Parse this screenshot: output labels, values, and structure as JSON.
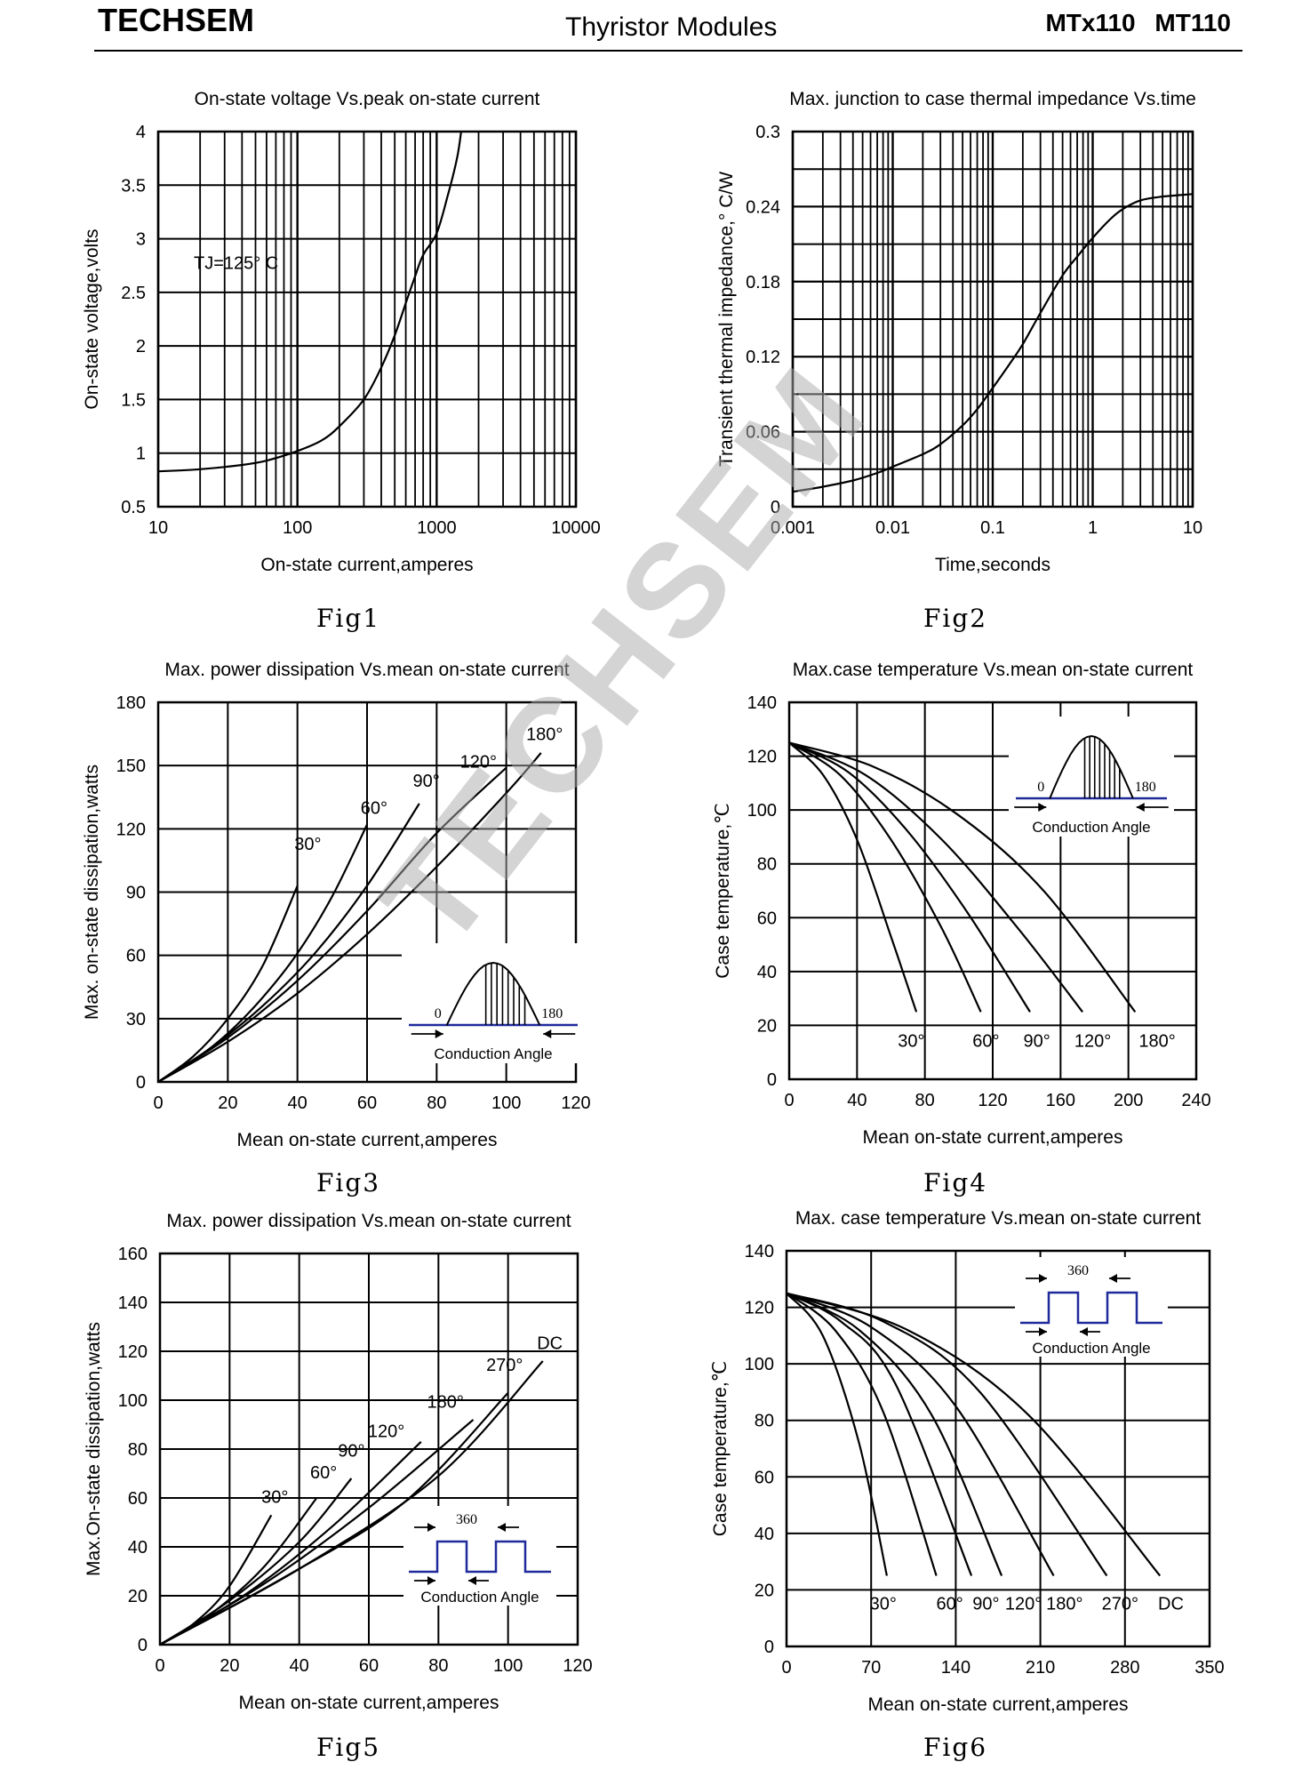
{
  "header": {
    "brand": "TECHSEM",
    "title": "Thyristor Modules",
    "part_numbers": "MTx110 MT110"
  },
  "watermark": "TECHSEM",
  "colors": {
    "ink": "#000000",
    "waveform": "#1f2a9b",
    "watermark": "#aaaaaa"
  },
  "chart_data": [
    {
      "id": "fig1",
      "caption": "Fig1",
      "type": "line",
      "title": "On-state voltage Vs.peak on-state current",
      "xlabel": "On-state current,amperes",
      "ylabel": "On-state voltage,volts",
      "xscale": "log",
      "xlim": [
        10,
        10000
      ],
      "ylim": [
        0.5,
        4
      ],
      "grid": true,
      "xticks": [
        10,
        100,
        1000,
        10000
      ],
      "xtick_labels": [
        "10",
        "100",
        "1000",
        "10000"
      ],
      "yticks": [
        0.5,
        1,
        1.5,
        2,
        2.5,
        3,
        3.5,
        4
      ],
      "ytick_labels": [
        "0.5",
        "1",
        "1.5",
        "2",
        "2.5",
        "3",
        "3.5",
        "4"
      ],
      "annotations": [
        {
          "text": "TJ=125° C",
          "x": 18,
          "y": 2.72
        }
      ],
      "series": [
        {
          "name": "TJ=125° C",
          "x": [
            10,
            20,
            40,
            60,
            100,
            150,
            200,
            300,
            400,
            500,
            600,
            700,
            800,
            1000,
            1200,
            1400,
            1500
          ],
          "y": [
            0.83,
            0.85,
            0.89,
            0.93,
            1.02,
            1.12,
            1.25,
            1.5,
            1.8,
            2.1,
            2.4,
            2.65,
            2.85,
            3.05,
            3.4,
            3.75,
            4.0
          ]
        }
      ]
    },
    {
      "id": "fig2",
      "caption": "Fig2",
      "type": "line",
      "title": "Max. junction to case thermal impedance Vs.time",
      "xlabel": "Time,seconds",
      "ylabel": "Transient thermal impedance,° C/W",
      "xscale": "log",
      "xlim": [
        0.001,
        10
      ],
      "ylim": [
        0,
        0.3
      ],
      "grid": true,
      "xticks": [
        0.001,
        0.01,
        0.1,
        1,
        10
      ],
      "xtick_labels": [
        "0.001",
        "0.01",
        "0.1",
        "1",
        "10"
      ],
      "yticks": [
        0,
        0.06,
        0.12,
        0.18,
        0.24,
        0.3
      ],
      "ytick_labels": [
        "0",
        "0.06",
        "0.12",
        "0.18",
        "0.24",
        "0.3"
      ],
      "series": [
        {
          "name": "Zth",
          "x": [
            0.001,
            0.002,
            0.004,
            0.007,
            0.01,
            0.02,
            0.03,
            0.05,
            0.07,
            0.1,
            0.15,
            0.2,
            0.3,
            0.5,
            0.7,
            1,
            1.5,
            2,
            3,
            5,
            10
          ],
          "y": [
            0.012,
            0.016,
            0.021,
            0.027,
            0.032,
            0.042,
            0.05,
            0.065,
            0.078,
            0.095,
            0.115,
            0.13,
            0.155,
            0.185,
            0.2,
            0.215,
            0.23,
            0.238,
            0.245,
            0.248,
            0.25
          ]
        }
      ]
    },
    {
      "id": "fig3",
      "caption": "Fig3",
      "type": "line",
      "title": "Max. power dissipation Vs.mean on-state current",
      "xlabel": "Mean on-state current,amperes",
      "ylabel": "Max. on-state dissipation,watts",
      "xlim": [
        0,
        120
      ],
      "ylim": [
        0,
        180
      ],
      "grid": true,
      "xticks": [
        0,
        20,
        40,
        60,
        80,
        100,
        120
      ],
      "xtick_labels": [
        "0",
        "20",
        "40",
        "60",
        "80",
        "100",
        "120"
      ],
      "yticks": [
        0,
        30,
        60,
        90,
        120,
        150,
        180
      ],
      "ytick_labels": [
        "0",
        "30",
        "60",
        "90",
        "120",
        "150",
        "180"
      ],
      "inset": {
        "kind": "sine",
        "label_start": "0",
        "label_end": "180",
        "caption": "Conduction Angle"
      },
      "series": [
        {
          "name": "30°",
          "label_pos": [
            43,
            110
          ],
          "x": [
            0,
            10,
            20,
            30,
            40
          ],
          "y": [
            0,
            12,
            30,
            55,
            93
          ]
        },
        {
          "name": "60°",
          "label_pos": [
            62,
            127
          ],
          "x": [
            0,
            10,
            20,
            30,
            40,
            50,
            60
          ],
          "y": [
            0,
            10,
            23,
            40,
            61,
            88,
            122
          ]
        },
        {
          "name": "90°",
          "label_pos": [
            77,
            140
          ],
          "x": [
            0,
            15,
            30,
            45,
            60,
            75
          ],
          "y": [
            0,
            16,
            36,
            61,
            93,
            132
          ]
        },
        {
          "name": "120°",
          "label_pos": [
            92,
            149
          ],
          "x": [
            0,
            20,
            40,
            60,
            80,
            100
          ],
          "y": [
            0,
            21,
            48,
            81,
            118,
            149
          ]
        },
        {
          "name": "180°",
          "label_pos": [
            111,
            162
          ],
          "x": [
            0,
            20,
            40,
            60,
            80,
            100,
            110
          ],
          "y": [
            0,
            19,
            42,
            70,
            102,
            137,
            156
          ]
        }
      ]
    },
    {
      "id": "fig4",
      "caption": "Fig4",
      "type": "line",
      "title": "Max.case temperature Vs.mean on-state current",
      "xlabel": "Mean on-state current,amperes",
      "ylabel": "Case temperature,℃",
      "xlim": [
        0,
        240
      ],
      "ylim": [
        0,
        140
      ],
      "grid": true,
      "xticks": [
        0,
        40,
        80,
        120,
        160,
        200,
        240
      ],
      "xtick_labels": [
        "0",
        "40",
        "80",
        "120",
        "160",
        "200",
        "240"
      ],
      "yticks": [
        0,
        20,
        40,
        60,
        80,
        100,
        120,
        140
      ],
      "ytick_labels": [
        "0",
        "20",
        "40",
        "60",
        "80",
        "100",
        "120",
        "140"
      ],
      "inset": {
        "kind": "sine",
        "label_start": "0",
        "label_end": "180",
        "caption": "Conduction Angle"
      },
      "series": [
        {
          "name": "30°",
          "label_pos": [
            72,
            12
          ],
          "x": [
            0,
            20,
            40,
            60,
            75
          ],
          "y": [
            125,
            113,
            89,
            53,
            25
          ]
        },
        {
          "name": "60°",
          "label_pos": [
            116,
            12
          ],
          "x": [
            0,
            30,
            60,
            90,
            113
          ],
          "y": [
            125,
            113,
            89,
            56,
            25
          ]
        },
        {
          "name": "90°",
          "label_pos": [
            146,
            12
          ],
          "x": [
            0,
            35,
            70,
            105,
            142
          ],
          "y": [
            125,
            114,
            92,
            62,
            25
          ]
        },
        {
          "name": "120°",
          "label_pos": [
            179,
            12
          ],
          "x": [
            0,
            45,
            90,
            135,
            173
          ],
          "y": [
            125,
            113,
            89,
            56,
            25
          ]
        },
        {
          "name": "180°",
          "label_pos": [
            217,
            12
          ],
          "x": [
            0,
            50,
            100,
            150,
            204
          ],
          "y": [
            125,
            116,
            98,
            70,
            25
          ]
        }
      ]
    },
    {
      "id": "fig5",
      "caption": "Fig5",
      "type": "line",
      "title": "Max. power dissipation Vs.mean on-state current",
      "xlabel": "Mean on-state current,amperes",
      "ylabel": "Max.On-state dissipation,watts",
      "xlim": [
        0,
        120
      ],
      "ylim": [
        0,
        160
      ],
      "grid": true,
      "xticks": [
        0,
        20,
        40,
        60,
        80,
        100,
        120
      ],
      "xtick_labels": [
        "0",
        "20",
        "40",
        "60",
        "80",
        "100",
        "120"
      ],
      "yticks": [
        0,
        20,
        40,
        60,
        80,
        100,
        120,
        140,
        160
      ],
      "ytick_labels": [
        "0",
        "20",
        "40",
        "60",
        "80",
        "100",
        "120",
        "140",
        "160"
      ],
      "inset": {
        "kind": "square",
        "label_period": "360",
        "caption": "Conduction Angle"
      },
      "series": [
        {
          "name": "30°",
          "label_pos": [
            33,
            58
          ],
          "x": [
            0,
            10,
            20,
            32
          ],
          "y": [
            0,
            9,
            24,
            53
          ]
        },
        {
          "name": "60°",
          "label_pos": [
            47,
            68
          ],
          "x": [
            0,
            15,
            30,
            45
          ],
          "y": [
            0,
            13,
            32,
            60
          ]
        },
        {
          "name": "90°",
          "label_pos": [
            55,
            77
          ],
          "x": [
            0,
            20,
            40,
            55
          ],
          "y": [
            0,
            18,
            42,
            68
          ]
        },
        {
          "name": "120°",
          "label_pos": [
            65,
            85
          ],
          "x": [
            0,
            25,
            50,
            75
          ],
          "y": [
            0,
            21,
            49,
            83
          ]
        },
        {
          "name": "180°",
          "label_pos": [
            82,
            97
          ],
          "x": [
            0,
            30,
            60,
            90
          ],
          "y": [
            0,
            25,
            56,
            92
          ]
        },
        {
          "name": "270°",
          "label_pos": [
            99,
            112
          ],
          "x": [
            0,
            35,
            70,
            100
          ],
          "y": [
            0,
            27,
            58,
            103
          ]
        },
        {
          "name": "DC",
          "label_pos": [
            112,
            121
          ],
          "x": [
            0,
            40,
            80,
            110
          ],
          "y": [
            0,
            31,
            69,
            116
          ]
        }
      ]
    },
    {
      "id": "fig6",
      "caption": "Fig6",
      "type": "line",
      "title": "Max. case temperature Vs.mean on-state current",
      "xlabel": "Mean on-state current,amperes",
      "ylabel": "Case temperature,℃",
      "xlim": [
        0,
        350
      ],
      "ylim": [
        0,
        140
      ],
      "grid": true,
      "xticks": [
        0,
        70,
        140,
        210,
        280,
        350
      ],
      "xtick_labels": [
        "0",
        "70",
        "140",
        "210",
        "280",
        "350"
      ],
      "yticks": [
        0,
        20,
        40,
        60,
        80,
        100,
        120,
        140
      ],
      "ytick_labels": [
        "0",
        "20",
        "40",
        "60",
        "80",
        "100",
        "120",
        "140"
      ],
      "inset": {
        "kind": "square",
        "label_period": "360",
        "caption": "Conduction Angle"
      },
      "series": [
        {
          "name": "30°",
          "label_pos": [
            80,
            13
          ],
          "x": [
            0,
            30,
            60,
            83
          ],
          "y": [
            125,
            110,
            72,
            25
          ]
        },
        {
          "name": "60°",
          "label_pos": [
            135,
            13
          ],
          "x": [
            0,
            40,
            80,
            124
          ],
          "y": [
            125,
            112,
            83,
            25
          ]
        },
        {
          "name": "90°",
          "label_pos": [
            165,
            13
          ],
          "x": [
            0,
            45,
            90,
            153
          ],
          "y": [
            125,
            115,
            93,
            25
          ]
        },
        {
          "name": "120°",
          "label_pos": [
            196,
            13
          ],
          "x": [
            0,
            60,
            120,
            178
          ],
          "y": [
            125,
            112,
            82,
            25
          ]
        },
        {
          "name": "180°",
          "label_pos": [
            230,
            13
          ],
          "x": [
            0,
            70,
            140,
            221
          ],
          "y": [
            125,
            113,
            85,
            25
          ]
        },
        {
          "name": "270°",
          "label_pos": [
            276,
            13
          ],
          "x": [
            0,
            80,
            160,
            265
          ],
          "y": [
            125,
            115,
            90,
            25
          ]
        },
        {
          "name": "DC",
          "label_pos": [
            318,
            13
          ],
          "x": [
            0,
            100,
            200,
            309
          ],
          "y": [
            125,
            112,
            82,
            25
          ]
        }
      ]
    }
  ]
}
